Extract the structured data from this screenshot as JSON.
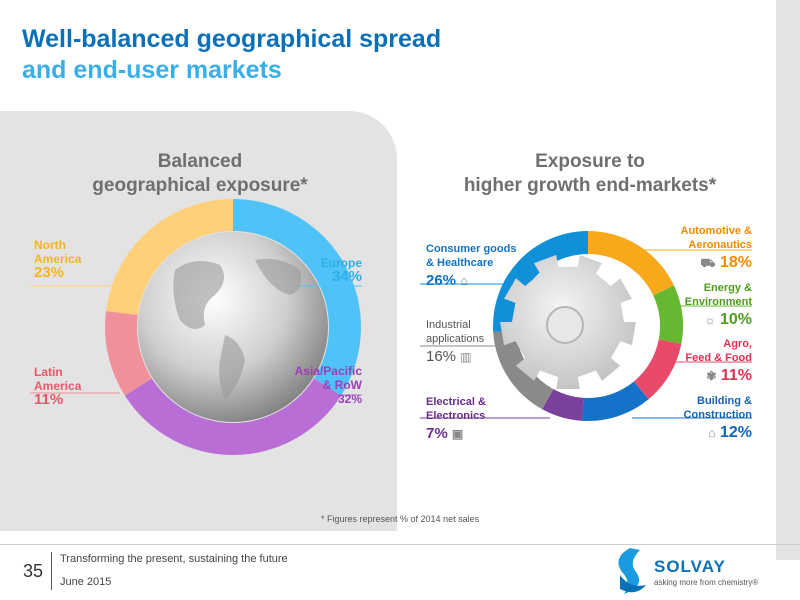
{
  "title": {
    "line1": "Well-balanced geographical spread",
    "line2": "and end-user markets"
  },
  "colors": {
    "europe": "#4fc3f7",
    "asia": "#b86ed4",
    "latin": "#f0909a",
    "north": "#fdd079",
    "consumer": "#1090d8",
    "automotive": "#f7a81b",
    "energy": "#66b832",
    "agro": "#e84a6a",
    "building": "#1572c9",
    "electrical": "#7b3f9c",
    "industrial": "#8a8a8a"
  },
  "chart_data": [
    {
      "type": "pie",
      "title": "Balanced geographical exposure*",
      "categories": [
        "Europe",
        "Asia/Pacific & RoW",
        "Latin America",
        "North America"
      ],
      "values": [
        34,
        32,
        11,
        23
      ],
      "labels": [
        {
          "name": "Europe",
          "value": "34%"
        },
        {
          "name": "Asia/Pacific & RoW",
          "value": "32%"
        },
        {
          "name": "Latin America",
          "value": "11%"
        },
        {
          "name": "North America",
          "value": "23%"
        }
      ]
    },
    {
      "type": "pie",
      "title": "Exposure to higher growth end-markets*",
      "categories": [
        "Automotive & Aeronautics",
        "Energy & Environment",
        "Agro, Feed & Food",
        "Building & Construction",
        "Electrical & Electronics",
        "Industrial applications",
        "Consumer goods & Healthcare"
      ],
      "values": [
        18,
        10,
        11,
        12,
        7,
        16,
        26
      ],
      "labels": [
        {
          "name": "Automotive & Aeronautics",
          "value": "18%"
        },
        {
          "name": "Energy & Environment",
          "value": "10%"
        },
        {
          "name": "Agro, Feed & Food",
          "value": "11%"
        },
        {
          "name": "Building & Construction",
          "value": "12%"
        },
        {
          "name": "Electrical & Electronics",
          "value": "7%"
        },
        {
          "name": "Industrial applications",
          "value": "16%"
        },
        {
          "name": "Consumer goods & Healthcare",
          "value": "26%"
        }
      ]
    }
  ],
  "left": {
    "title_l1": "Balanced",
    "title_l2": "geographical exposure*",
    "north": {
      "l1": "North",
      "l2": "America",
      "pct": "23%"
    },
    "europe": {
      "l1": "Europe",
      "pct": "34%"
    },
    "latin": {
      "l1": "Latin",
      "l2": "America",
      "pct": "11%"
    },
    "asia": {
      "l1": "Asia/Pacific",
      "l2": "& RoW",
      "pct": "32%"
    }
  },
  "right": {
    "title_l1": "Exposure to",
    "title_l2": "higher growth end-markets*",
    "consumer": {
      "l1": "Consumer goods",
      "l2": "& Healthcare",
      "pct": "26%"
    },
    "industrial": {
      "l1": "Industrial",
      "l2": "applications",
      "pct": "16%"
    },
    "electrical": {
      "l1": "Electrical &",
      "l2": "Electronics",
      "pct": "7%"
    },
    "automotive": {
      "l1": "Automotive &",
      "l2": "Aeronautics",
      "pct": "18%"
    },
    "energy": {
      "l1": "Energy &",
      "l2": "Environment",
      "pct": "10%"
    },
    "agro": {
      "l1": "Agro,",
      "l2": "Feed & Food",
      "pct": "11%"
    },
    "building": {
      "l1": "Building &",
      "l2": "Construction",
      "pct": "12%"
    }
  },
  "footnote": "* Figures represent % of 2014 net sales",
  "footer": {
    "page": "35",
    "line1": "Transforming the present, sustaining the future",
    "line2": "June 2015",
    "logo": "SOLVAY",
    "tagline": "asking more from chemistry®"
  }
}
